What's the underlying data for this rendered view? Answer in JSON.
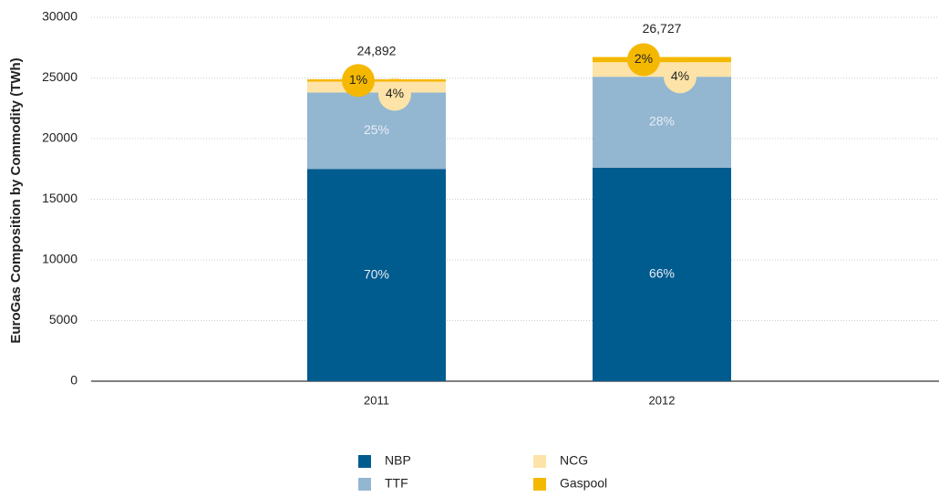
{
  "chart_data": {
    "type": "stacked_bar",
    "y_axis_label": "EuroGas Composition by Commodity (TWh)",
    "categories": [
      "2011",
      "2012"
    ],
    "series": [
      {
        "name": "NBP",
        "color": "#005b8f",
        "values": [
          17500,
          17600
        ],
        "value_labels": [
          "70%",
          "66%"
        ]
      },
      {
        "name": "TTF",
        "color": "#93b6d1",
        "values": [
          6300,
          7500
        ],
        "value_labels": [
          "25%",
          "28%"
        ]
      },
      {
        "name": "NCG",
        "color": "#fde3a7",
        "values": [
          900,
          1200
        ],
        "value_labels": [
          "4%",
          "4%"
        ]
      },
      {
        "name": "Gaspool",
        "color": "#f5b800",
        "values": [
          192,
          427
        ],
        "value_labels": [
          "1%",
          "2%"
        ]
      }
    ],
    "totals": {
      "values": [
        24892,
        26727
      ],
      "value_labels": [
        "24,892",
        "26,727"
      ]
    },
    "ylim": [
      0,
      30000
    ],
    "yticks": [
      0,
      5000,
      10000,
      15000,
      20000,
      25000,
      30000
    ],
    "grid": true
  }
}
